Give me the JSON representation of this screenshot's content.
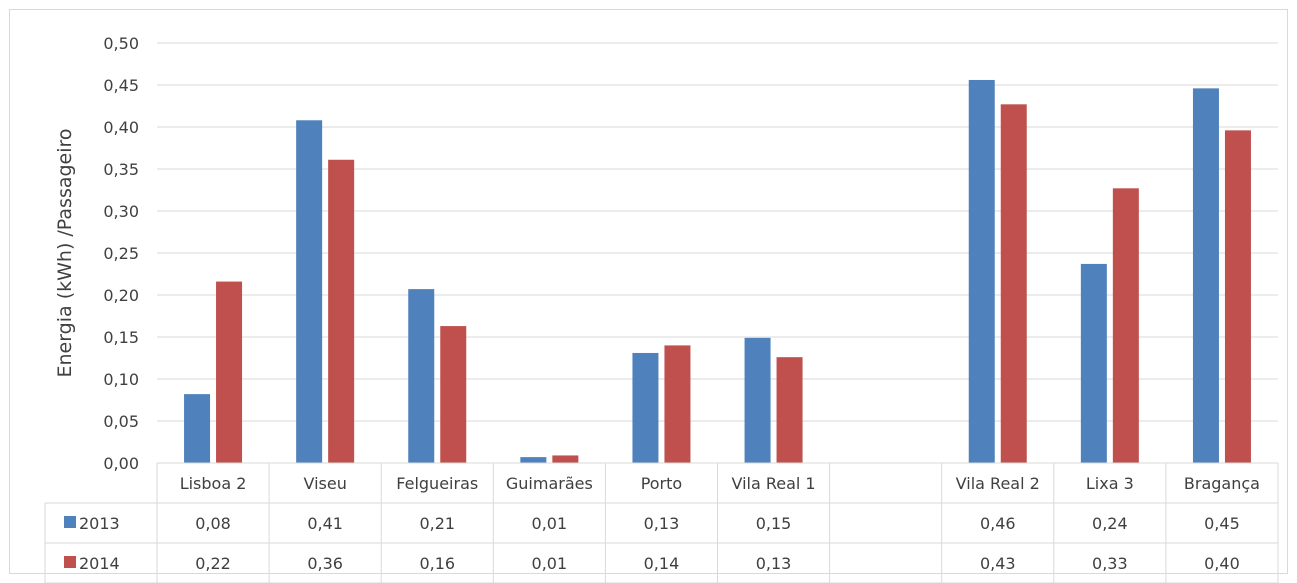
{
  "chart_data": {
    "type": "bar",
    "title": "",
    "xlabel": "",
    "ylabel": "Energia (kWh) /Passageiro",
    "ylim": [
      0,
      0.5
    ],
    "ytick_step": 0.05,
    "yticks": [
      "0,00",
      "0,05",
      "0,10",
      "0,15",
      "0,20",
      "0,25",
      "0,30",
      "0,35",
      "0,40",
      "0,45",
      "0,50"
    ],
    "grid": true,
    "legend": "data-table",
    "categories": [
      "Lisboa 2",
      "Viseu",
      "Felgueiras",
      "Guimarães",
      "Porto",
      "Vila Real 1",
      "",
      "Vila Real 2",
      "Lixa 3",
      "Bragança"
    ],
    "series": [
      {
        "name": "2013",
        "color": "#4f81bd",
        "values": [
          0.082,
          0.408,
          0.207,
          0.007,
          0.131,
          0.149,
          null,
          0.456,
          0.237,
          0.446
        ],
        "labels": [
          "0,08",
          "0,41",
          "0,21",
          "0,01",
          "0,13",
          "0,15",
          "",
          "0,46",
          "0,24",
          "0,45"
        ]
      },
      {
        "name": "2014",
        "color": "#c0504d",
        "values": [
          0.216,
          0.361,
          0.163,
          0.009,
          0.14,
          0.126,
          null,
          0.427,
          0.327,
          0.396
        ],
        "labels": [
          "0,22",
          "0,36",
          "0,16",
          "0,01",
          "0,14",
          "0,13",
          "",
          "0,43",
          "0,33",
          "0,40"
        ]
      }
    ]
  }
}
